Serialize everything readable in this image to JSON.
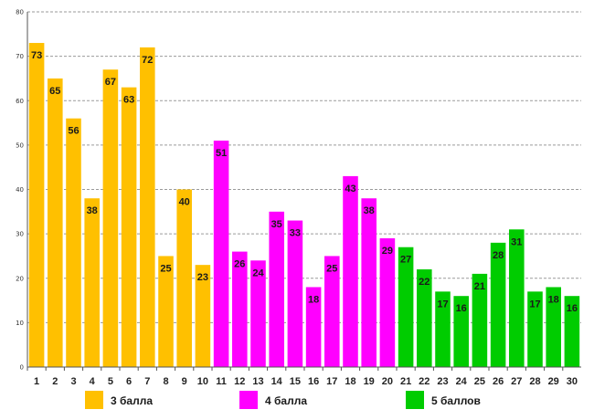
{
  "chart_data": {
    "type": "bar",
    "title": "",
    "xlabel": "",
    "ylabel": "",
    "ylim": [
      0,
      80
    ],
    "yticks": [
      0,
      10,
      20,
      30,
      40,
      50,
      60,
      70,
      80
    ],
    "grid": true,
    "legend_position": "bottom",
    "categories": [
      "1",
      "2",
      "3",
      "4",
      "5",
      "6",
      "7",
      "8",
      "9",
      "10",
      "11",
      "12",
      "13",
      "14",
      "15",
      "16",
      "17",
      "18",
      "19",
      "20",
      "21",
      "22",
      "23",
      "24",
      "25",
      "26",
      "27",
      "28",
      "29",
      "30"
    ],
    "values": [
      73,
      65,
      56,
      38,
      67,
      63,
      72,
      25,
      40,
      23,
      51,
      26,
      24,
      35,
      33,
      18,
      25,
      43,
      38,
      29,
      27,
      22,
      17,
      16,
      21,
      28,
      31,
      17,
      18,
      16
    ],
    "series": [
      {
        "name": "3 балла",
        "color": "#FFC000",
        "start": 1,
        "end": 10
      },
      {
        "name": "4 балла",
        "color": "#FF00FF",
        "start": 11,
        "end": 20
      },
      {
        "name": "5 баллов",
        "color": "#00CC00",
        "start": 21,
        "end": 30
      }
    ]
  }
}
